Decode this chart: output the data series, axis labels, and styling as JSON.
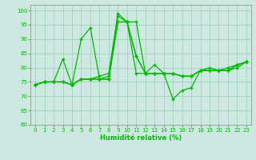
{
  "xlabel": "Humidité relative (%)",
  "bg_color": "#cce8e0",
  "line_color": "#00bb00",
  "grid_color": "#99ccbb",
  "xlim": [
    -0.5,
    23.5
  ],
  "ylim": [
    60,
    102
  ],
  "yticks": [
    60,
    65,
    70,
    75,
    80,
    85,
    90,
    95,
    100
  ],
  "xticks": [
    0,
    1,
    2,
    3,
    4,
    5,
    6,
    7,
    8,
    9,
    10,
    11,
    12,
    13,
    14,
    15,
    16,
    17,
    18,
    19,
    20,
    21,
    22,
    23
  ],
  "series": [
    [
      74,
      75,
      75,
      75,
      74,
      76,
      76,
      77,
      78,
      98,
      96,
      84,
      78,
      78,
      78,
      78,
      77,
      77,
      79,
      80,
      79,
      79,
      81,
      82
    ],
    [
      74,
      75,
      75,
      75,
      74,
      76,
      76,
      76,
      76,
      96,
      96,
      96,
      78,
      78,
      78,
      78,
      77,
      77,
      79,
      79,
      79,
      80,
      81,
      82
    ],
    [
      74,
      75,
      75,
      83,
      74,
      90,
      94,
      76,
      77,
      99,
      96,
      84,
      78,
      81,
      78,
      69,
      72,
      73,
      79,
      79,
      79,
      79,
      81,
      82
    ],
    [
      74,
      75,
      75,
      75,
      74,
      76,
      76,
      76,
      76,
      96,
      96,
      78,
      78,
      78,
      78,
      78,
      77,
      77,
      79,
      79,
      79,
      79,
      80,
      82
    ]
  ]
}
